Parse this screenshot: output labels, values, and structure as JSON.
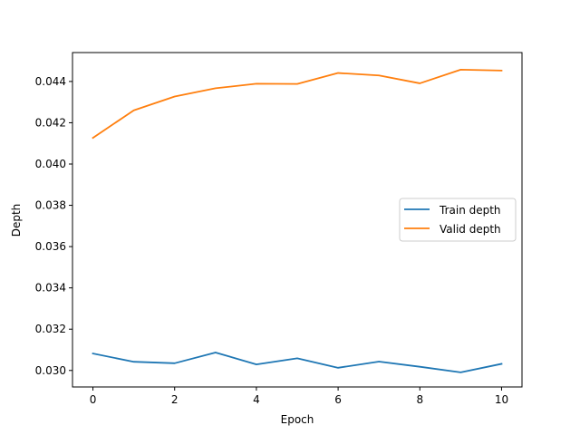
{
  "chart_data": {
    "type": "line",
    "xlabel": "Epoch",
    "ylabel": "Depth",
    "xlim": [
      -0.5,
      10.5
    ],
    "ylim": [
      0.0292,
      0.0454
    ],
    "xticks": [
      0,
      2,
      4,
      6,
      8,
      10
    ],
    "xtick_labels": [
      "0",
      "2",
      "4",
      "6",
      "8",
      "10"
    ],
    "yticks": [
      0.03,
      0.032,
      0.034,
      0.036,
      0.038,
      0.04,
      0.042,
      0.044
    ],
    "ytick_labels": [
      "0.030",
      "0.032",
      "0.034",
      "0.036",
      "0.038",
      "0.040",
      "0.042",
      "0.044"
    ],
    "grid": false,
    "legend_position": "center-right",
    "x": [
      0,
      1,
      2,
      3,
      4,
      5,
      6,
      7,
      8,
      9,
      10
    ],
    "series": [
      {
        "name": "Train depth",
        "color": "#1f77b4",
        "values": [
          0.03082,
          0.03042,
          0.03035,
          0.03087,
          0.03029,
          0.03059,
          0.03013,
          0.03043,
          0.03018,
          0.02991,
          0.03032
        ]
      },
      {
        "name": "Valid depth",
        "color": "#ff7f0e",
        "values": [
          0.04127,
          0.0426,
          0.04327,
          0.04367,
          0.04389,
          0.04388,
          0.04441,
          0.04429,
          0.04391,
          0.04457,
          0.04453
        ]
      }
    ]
  }
}
